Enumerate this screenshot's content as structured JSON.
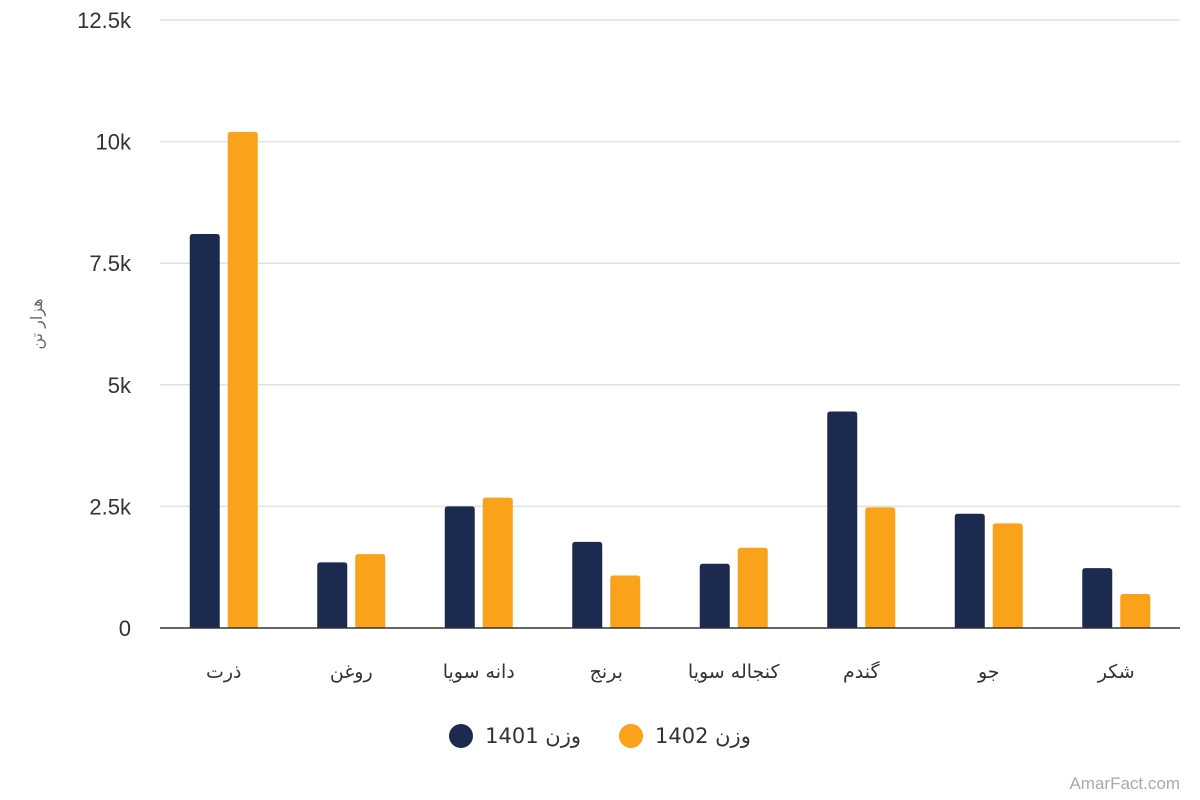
{
  "chart_data": {
    "type": "bar",
    "title": "",
    "xlabel": "",
    "ylabel": "هزار تن",
    "ylim": [
      0,
      12500
    ],
    "yticks": [
      0,
      2500,
      5000,
      7500,
      10000,
      12500
    ],
    "ytick_labels": [
      "0",
      "2.5k",
      "5k",
      "7.5k",
      "10k",
      "12.5k"
    ],
    "grid": true,
    "legend_position": "bottom",
    "categories": [
      "ذرت",
      "روغن",
      "دانه سویا",
      "برنج",
      "کنجاله سویا",
      "گندم",
      "جو",
      "شکر"
    ],
    "series": [
      {
        "name": "وزن 1401",
        "color": "#1b2a4e",
        "values": [
          8100,
          1350,
          2500,
          1770,
          1320,
          4450,
          2350,
          1230
        ]
      },
      {
        "name": "وزن 1402",
        "color": "#faa21a",
        "values": [
          10200,
          1520,
          2680,
          1080,
          1650,
          2480,
          2150,
          700
        ]
      }
    ]
  },
  "credit": "AmarFact.com"
}
